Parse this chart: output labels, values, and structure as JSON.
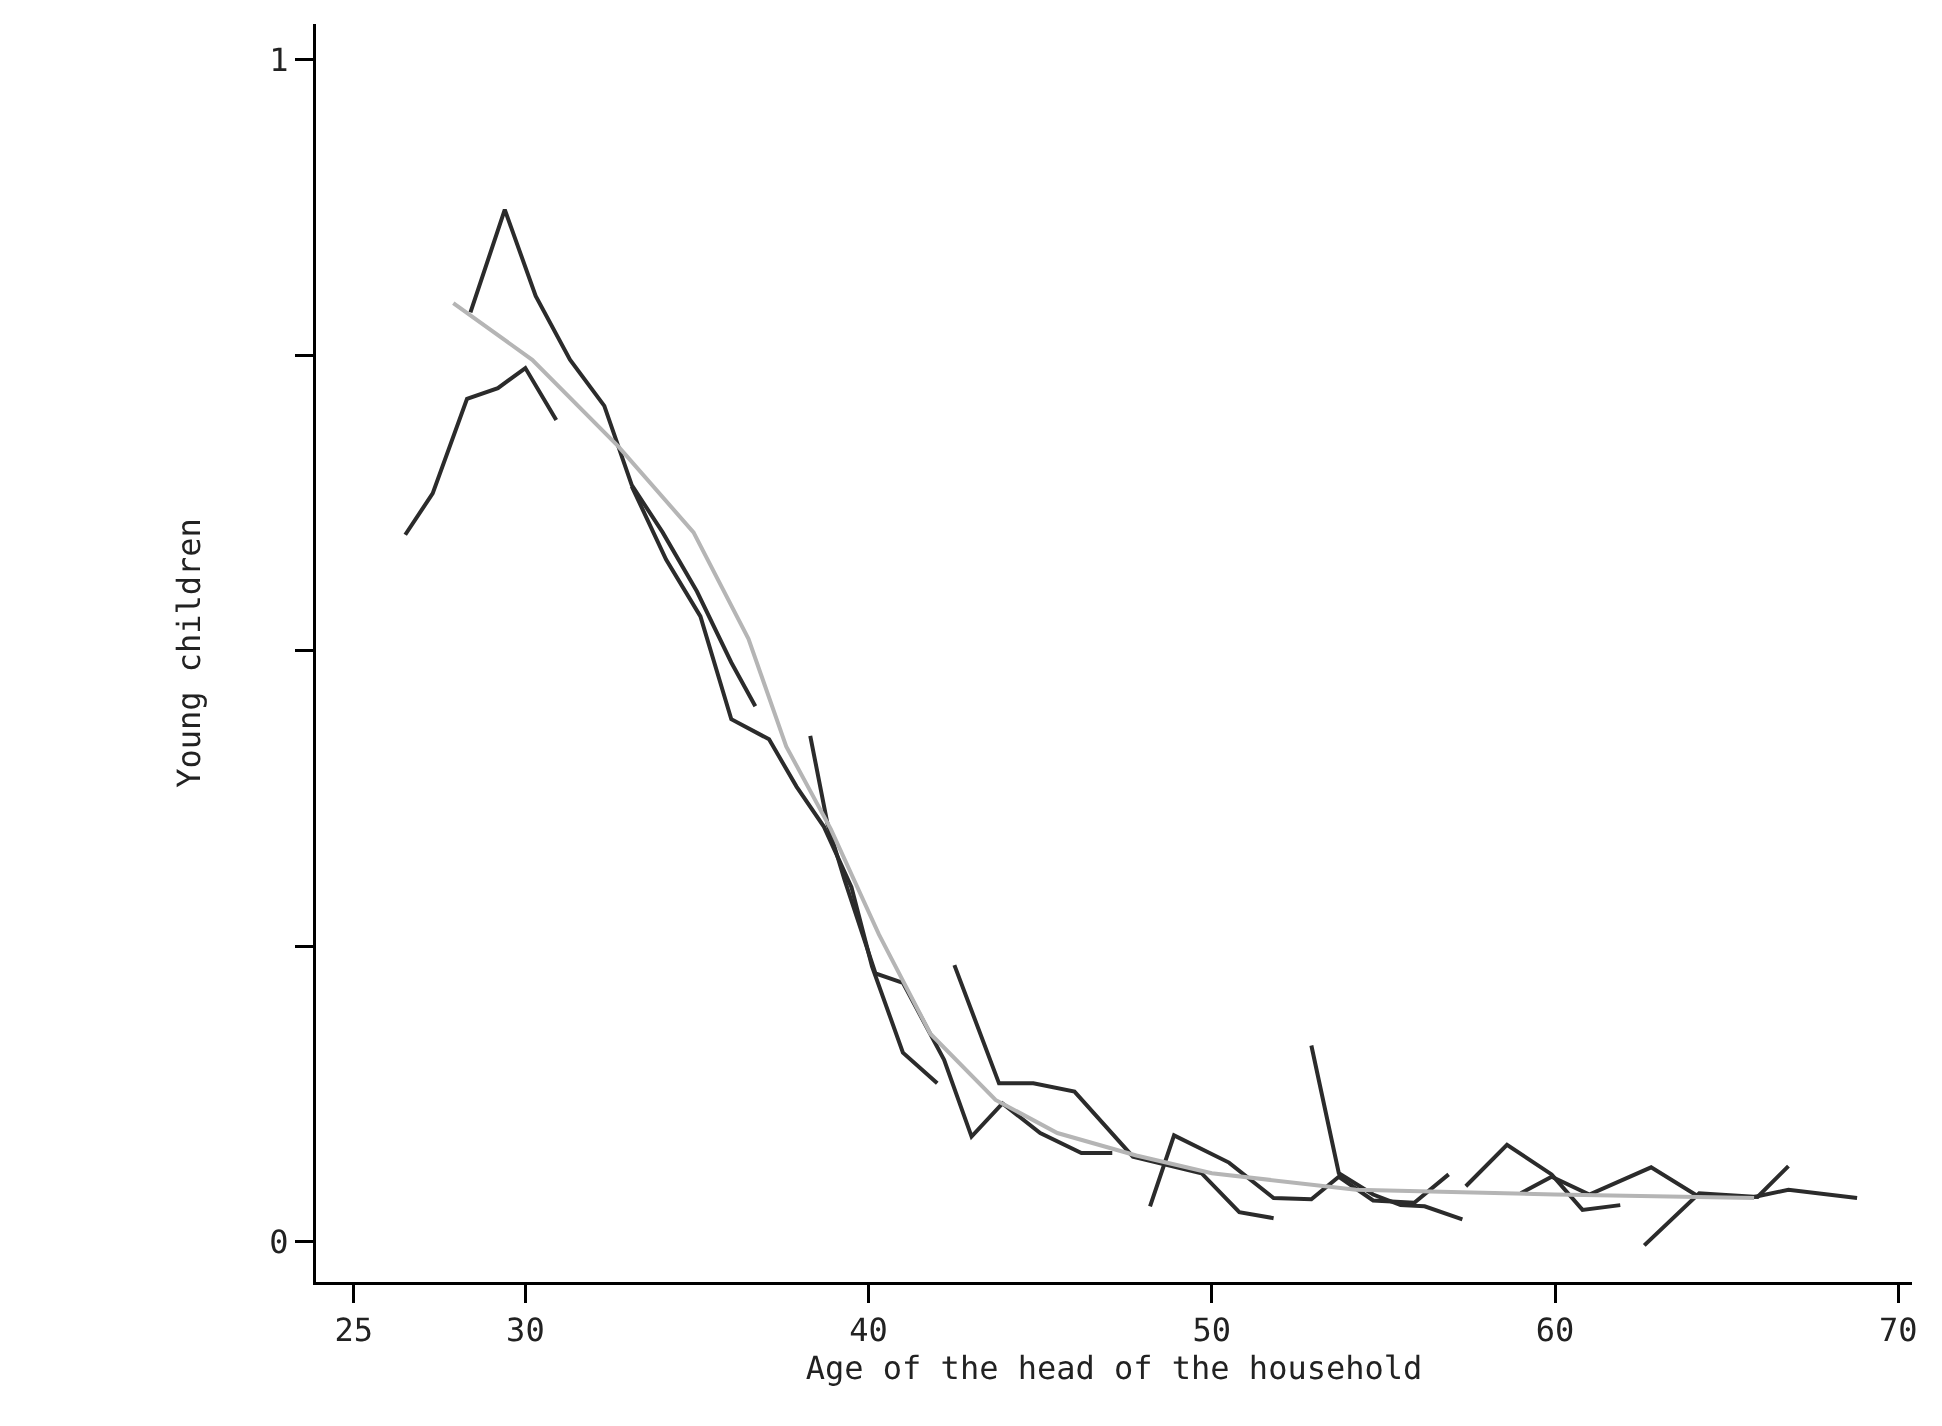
{
  "chart_data": {
    "type": "line",
    "xlabel": "Age of the head of the household",
    "ylabel": "Young children",
    "xlim": [
      23.9,
      70.4
    ],
    "xticks": [
      25,
      30,
      40,
      50,
      60,
      70
    ],
    "ylim": [
      -0.034,
      1.03
    ],
    "yticks": [
      0,
      {
        "value": 0.25,
        "label": null
      },
      {
        "value": 0.5,
        "label": null
      },
      {
        "value": 0.75,
        "label": null
      },
      1
    ],
    "grid": false,
    "marker": "none",
    "line_style": "solid",
    "series": [
      {
        "color": "#2b2b2b",
        "x": [
          26.5,
          27.3,
          28.3,
          29.2,
          30.0,
          30.9
        ],
        "values": [
          0.598,
          0.633,
          0.713,
          0.722,
          0.739,
          0.695
        ]
      },
      {
        "color": "#2b2b2b",
        "x": [
          28.4,
          29.4,
          30.3,
          31.3,
          32.3,
          33.1,
          34.0,
          35.0,
          36.0,
          36.7
        ],
        "values": [
          0.786,
          0.873,
          0.8,
          0.746,
          0.707,
          0.64,
          0.6,
          0.55,
          0.49,
          0.453
        ]
      },
      {
        "color": "#2b2b2b",
        "x": [
          33.1,
          34.1,
          35.1,
          36.0,
          37.1,
          37.9,
          38.7,
          39.5,
          40.1,
          41.0,
          42.0
        ],
        "values": [
          0.639,
          0.577,
          0.529,
          0.442,
          0.425,
          0.385,
          0.351,
          0.3,
          0.233,
          0.16,
          0.134
        ]
      },
      {
        "color": "#2b2b2b",
        "x": [
          38.3,
          38.8,
          39.3,
          40.2,
          41.0,
          42.2,
          43.0,
          43.9,
          45.0,
          46.2,
          47.1
        ],
        "values": [
          0.428,
          0.354,
          0.306,
          0.227,
          0.219,
          0.154,
          0.089,
          0.117,
          0.092,
          0.075,
          0.075
        ]
      },
      {
        "color": "#2b2b2b",
        "x": [
          42.5,
          43.8,
          44.8,
          46.0,
          47.7,
          49.7,
          50.8,
          51.8
        ],
        "values": [
          0.234,
          0.134,
          0.134,
          0.127,
          0.072,
          0.058,
          0.025,
          0.02
        ]
      },
      {
        "color": "#2b2b2b",
        "x": [
          48.2,
          48.9,
          50.5,
          51.8,
          52.9,
          53.7,
          54.7,
          55.9,
          56.9
        ],
        "values": [
          0.03,
          0.09,
          0.067,
          0.037,
          0.036,
          0.055,
          0.035,
          0.033,
          0.057
        ]
      },
      {
        "color": "#2b2b2b",
        "x": [
          52.9,
          53.7,
          54.7,
          55.5,
          56.2,
          57.3
        ],
        "values": [
          0.166,
          0.058,
          0.04,
          0.031,
          0.03,
          0.019
        ]
      },
      {
        "color": "#2b2b2b",
        "x": [
          57.4,
          58.6,
          59.9,
          60.8,
          61.9
        ],
        "values": [
          0.047,
          0.082,
          0.057,
          0.027,
          0.031
        ]
      },
      {
        "color": "#2b2b2b",
        "x": [
          59.0,
          59.9,
          61.0,
          62.8,
          64.2,
          65.8,
          66.8,
          68.8
        ],
        "values": [
          0.041,
          0.055,
          0.04,
          0.063,
          0.038,
          0.038,
          0.044,
          0.037
        ]
      },
      {
        "color": "#2b2b2b",
        "x": [
          62.6,
          64.2,
          65.9,
          66.8
        ],
        "values": [
          -0.003,
          0.041,
          0.038,
          0.064
        ]
      },
      {
        "color": "#b5b5b5",
        "x": [
          27.9,
          30.2,
          32.7,
          34.9,
          36.5,
          37.6,
          38.9,
          40.3,
          41.8,
          43.7,
          45.5,
          47.8,
          50.0,
          54.2,
          60.0,
          65.8
        ],
        "values": [
          0.794,
          0.746,
          0.673,
          0.6,
          0.51,
          0.419,
          0.349,
          0.26,
          0.176,
          0.12,
          0.092,
          0.073,
          0.058,
          0.044,
          0.04,
          0.037
        ]
      }
    ]
  }
}
